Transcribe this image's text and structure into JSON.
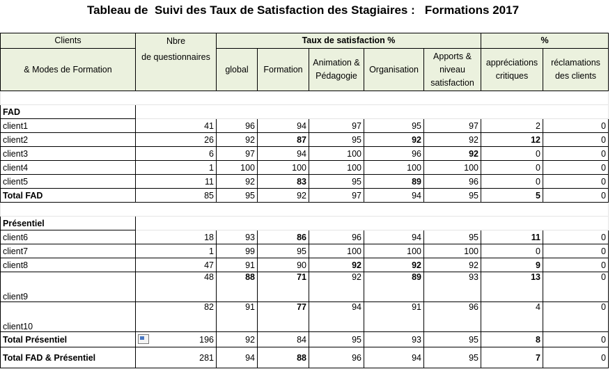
{
  "title": "Tableau de  Suivi des Taux de Satisfaction des Stagiaires :   Formations 2017",
  "headers": {
    "clients": "Clients",
    "modes": "& Modes de Formation",
    "nbre": "Nbre",
    "de_questionnaires": "de questionnaires",
    "taux": "Taux de satisfaction  %",
    "pct": "%",
    "global": "global",
    "formation": "Formation",
    "animation": "Animation & Pédagogie",
    "organisation": "Organisation",
    "apports": "Apports & niveau satisfaction",
    "appreciations": "appréciations critiques",
    "reclamations": "réclamations des clients"
  },
  "sections": {
    "fad": "FAD",
    "presentiel": "Présentiel"
  },
  "rows": [
    {
      "label": "client1",
      "vals": [
        "41",
        "96",
        "94",
        "97",
        "95",
        "97",
        "2",
        "0"
      ]
    },
    {
      "label": "client2",
      "vals": [
        "26",
        "92",
        "87",
        "95",
        "92",
        "92",
        "12",
        "0"
      ]
    },
    {
      "label": "client3",
      "vals": [
        "6",
        "97",
        "94",
        "100",
        "96",
        "92",
        "0",
        "0"
      ]
    },
    {
      "label": "client4",
      "vals": [
        "1",
        "100",
        "100",
        "100",
        "100",
        "100",
        "0",
        "0"
      ]
    },
    {
      "label": "client5",
      "vals": [
        "11",
        "92",
        "83",
        "95",
        "89",
        "96",
        "0",
        "0"
      ]
    },
    {
      "label": "Total FAD",
      "vals": [
        "85",
        "95",
        "92",
        "97",
        "94",
        "95",
        "5",
        "0"
      ]
    },
    {
      "label": "client6",
      "vals": [
        "18",
        "93",
        "86",
        "96",
        "94",
        "95",
        "11",
        "0"
      ]
    },
    {
      "label": "client7",
      "vals": [
        "1",
        "99",
        "95",
        "100",
        "100",
        "100",
        "0",
        "0"
      ]
    },
    {
      "label": "client8",
      "vals": [
        "47",
        "91",
        "90",
        "92",
        "92",
        "92",
        "9",
        "0"
      ]
    },
    {
      "label": "client9",
      "vals": [
        "48",
        "88",
        "71",
        "92",
        "89",
        "93",
        "13",
        "0"
      ]
    },
    {
      "label": "client10",
      "vals": [
        "82",
        "91",
        "77",
        "94",
        "91",
        "96",
        "4",
        "0"
      ]
    },
    {
      "label": "Total Présentiel",
      "vals": [
        "196",
        "92",
        "84",
        "95",
        "93",
        "95",
        "8",
        "0"
      ]
    },
    {
      "label": "Total FAD & Présentiel",
      "vals": [
        "281",
        "94",
        "88",
        "96",
        "94",
        "95",
        "7",
        "0"
      ]
    }
  ],
  "bold_cells": {
    "client2": [
      2,
      4,
      6
    ],
    "client3": [
      5
    ],
    "client5": [
      2,
      4
    ],
    "Total FAD": [
      6
    ],
    "client6": [
      2,
      6
    ],
    "client8": [
      3,
      4,
      6
    ],
    "client9": [
      1,
      2,
      4,
      6
    ],
    "client10": [
      2
    ],
    "Total Présentiel": [
      6
    ],
    "Total FAD & Présentiel": [
      2,
      6
    ]
  }
}
